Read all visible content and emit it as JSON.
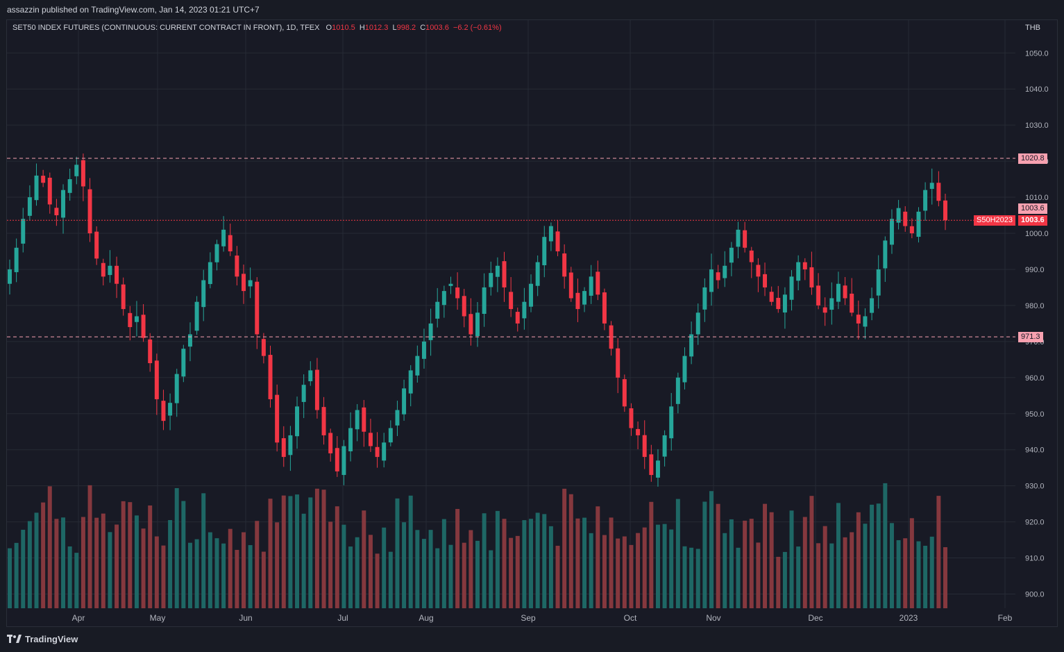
{
  "header": {
    "publisher_text": "assazzin published on TradingView.com, Jan 14, 2023 01:21 UTC+7"
  },
  "legend": {
    "symbol_text": "SET50 INDEX FUTURES (CONTINUOUS: CURRENT CONTRACT IN FRONT), 1D, TFEX",
    "open_label": "O",
    "open_value": "1010.5",
    "high_label": "H",
    "high_value": "1012.3",
    "low_label": "L",
    "low_value": "998.2",
    "close_label": "C",
    "close_value": "1003.6",
    "change_value": "−6.2 (−0.61%)"
  },
  "price_axis": {
    "currency": "THB"
  },
  "price_tags": {
    "resistance": "1020.8",
    "support": "971.3",
    "last_price_top": "1003.6",
    "symbol_label": "S50H2023",
    "last_price": "1003.6"
  },
  "footer": {
    "brand": "TradingView"
  },
  "colors": {
    "up": "#26a69a",
    "down": "#f23645",
    "up_volume": "#1f6b68",
    "down_volume": "#8b3a3f",
    "grid": "#262a35",
    "level_line": "#f7a1b0",
    "last_line": "#f23645"
  },
  "chart_data": {
    "type": "candlestick",
    "title": "SET50 INDEX FUTURES (CONTINUOUS: CURRENT CONTRACT IN FRONT), 1D, TFEX",
    "y_axis": {
      "min": 895,
      "max": 1055,
      "ticks": [
        900,
        910,
        920,
        930,
        940,
        950,
        960,
        970,
        980,
        990,
        1000,
        1010,
        1020,
        1030,
        1040,
        1050
      ]
    },
    "x_axis": {
      "ticks": [
        "Apr",
        "May",
        "Jun",
        "Jul",
        "Aug",
        "Sep",
        "Oct",
        "Nov",
        "Dec",
        "2023",
        "Feb"
      ]
    },
    "horizontal_levels": [
      1020.8,
      971.3
    ],
    "last_price": 1003.6,
    "grid": true,
    "volume_visible": true,
    "close_series": [
      990,
      996,
      1004,
      1010,
      1016,
      1014,
      1008,
      1005,
      1012,
      1015,
      1019,
      1013,
      1000,
      993,
      988,
      991,
      986,
      979,
      974,
      977,
      971,
      964,
      954,
      948,
      953,
      961,
      968,
      972,
      981,
      987,
      992,
      997,
      1001,
      995,
      988,
      984,
      987,
      972,
      966,
      954,
      942,
      938,
      944,
      952,
      958,
      962,
      951,
      944,
      939,
      934,
      941,
      946,
      951,
      945,
      941,
      938,
      942,
      946,
      951,
      957,
      962,
      966,
      970,
      975,
      981,
      984,
      986,
      982,
      977,
      972,
      978,
      985,
      989,
      991,
      985,
      979,
      975,
      981,
      986,
      992,
      999,
      1002,
      995,
      988,
      982,
      979,
      984,
      988,
      983,
      975,
      968,
      960,
      952,
      946,
      944,
      938,
      933,
      937,
      944,
      952,
      960,
      966,
      972,
      978,
      985,
      990,
      987,
      991,
      996,
      1001,
      996,
      992,
      988,
      985,
      981,
      979,
      983,
      988,
      992,
      990,
      985,
      980,
      978,
      982,
      986,
      982,
      978,
      975,
      977,
      982,
      990,
      998,
      1004,
      1007,
      1002,
      1000,
      1006,
      1012,
      1014,
      1009,
      1003.6
    ]
  }
}
